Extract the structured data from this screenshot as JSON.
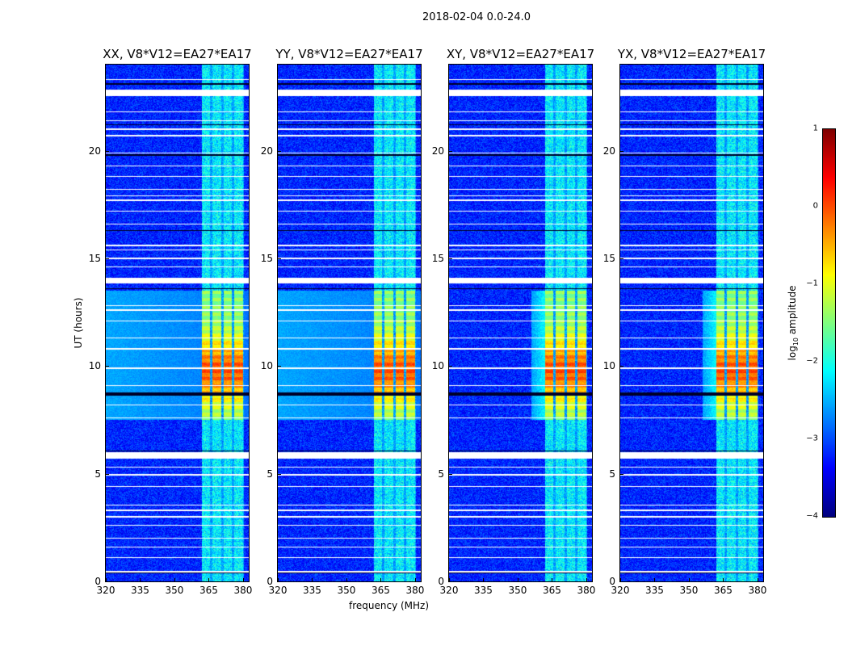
{
  "chart_data": {
    "type": "heatmap",
    "title": "2018-02-04 0.0-24.0",
    "xlabel": "frequency (MHz)",
    "ylabel": "UT (hours)",
    "xlim": [
      320,
      382.5
    ],
    "ylim": [
      0,
      24
    ],
    "xticks": [
      320,
      335,
      350,
      365,
      380
    ],
    "yticks": [
      0,
      5,
      10,
      15,
      20
    ],
    "panels": [
      {
        "title": "XX, V8*V12=EA27*EA17",
        "pol": "XX",
        "broadband_daytime": true
      },
      {
        "title": "YY, V8*V12=EA27*EA17",
        "pol": "YY",
        "broadband_daytime": true
      },
      {
        "title": "XY, V8*V12=EA27*EA17",
        "pol": "XY",
        "broadband_daytime": false
      },
      {
        "title": "YX, V8*V12=EA27*EA17",
        "pol": "YX",
        "broadband_daytime": false
      }
    ],
    "colorbar": {
      "label_prefix": "log",
      "label_sub": "10",
      "label_suffix": " amplitude",
      "range": [
        -4,
        1
      ],
      "ticks": [
        "1",
        "0",
        "−1",
        "−2",
        "−3",
        "−4"
      ],
      "tick_values": [
        1,
        0,
        -1,
        -2,
        -3,
        -4
      ],
      "colormap": "jet"
    },
    "features": {
      "background_log_amp": -3.2,
      "rfi_band_mhz": [
        362,
        380.5
      ],
      "rfi_subbands_mhz": [
        [
          362,
          365.5
        ],
        [
          366.5,
          370.5
        ],
        [
          371.5,
          375
        ],
        [
          376,
          380
        ]
      ],
      "rfi_quiet_log_amp": -2.2,
      "strong_rfi_hours": [
        7.5,
        13.5
      ],
      "strong_rfi_peak_log_amp": 0.3,
      "flagged_hours": [
        [
          22.55,
          22.85
        ],
        [
          13.85,
          14.1
        ],
        [
          5.7,
          6.0
        ]
      ],
      "thin_flagged_hours": [
        0.45,
        1.1,
        1.6,
        2.0,
        2.6,
        3.0,
        3.3,
        3.55,
        4.4,
        4.95,
        5.3,
        7.6,
        8.2,
        9.1,
        9.9,
        10.8,
        11.3,
        12.1,
        12.6,
        12.8,
        14.6,
        15.0,
        15.4,
        15.6,
        16.6,
        17.2,
        17.7,
        17.9,
        18.2,
        18.8,
        19.3,
        19.9,
        20.7,
        21.0,
        21.4,
        21.8,
        23.3
      ],
      "dead_hours": [
        0.4,
        6.05,
        8.7,
        11.3,
        13.6,
        16.3,
        19.8,
        21.2,
        23.1
      ]
    }
  }
}
